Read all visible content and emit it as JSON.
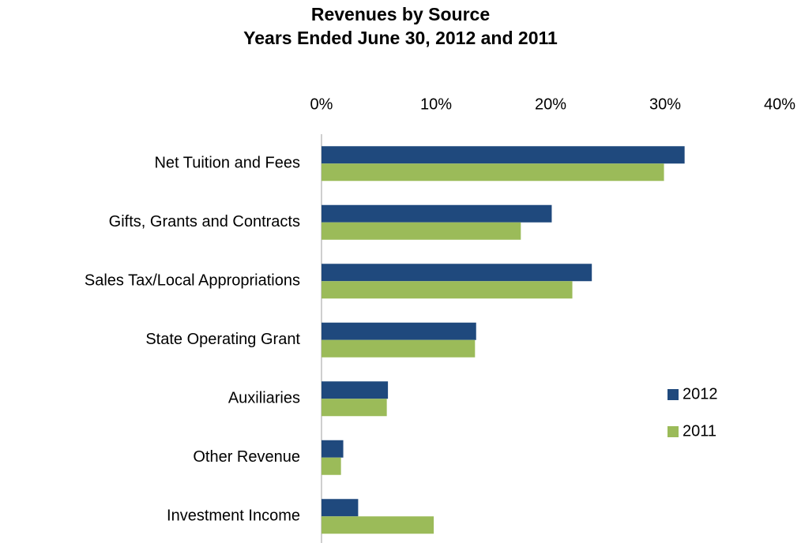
{
  "chart_data": {
    "type": "barh",
    "title": "Revenues by Source",
    "subtitle": "Years Ended June 30, 2012 and 2011",
    "categories": [
      "Net Tuition and Fees",
      "Gifts, Grants and Contracts",
      "Sales Tax/Local Appropriations",
      "State Operating Grant",
      "Auxiliaries",
      "Other Revenue",
      "Investment Income"
    ],
    "series": [
      {
        "name": "2012",
        "color": "#1f497d",
        "values": [
          31.7,
          20.1,
          23.6,
          13.5,
          5.8,
          1.9,
          3.2
        ]
      },
      {
        "name": "2011",
        "color": "#9bbb59",
        "values": [
          29.9,
          17.4,
          21.9,
          13.4,
          5.7,
          1.7,
          9.8
        ]
      }
    ],
    "xlim": [
      0,
      40
    ],
    "xticks": [
      {
        "value": 0,
        "label": "0%"
      },
      {
        "value": 10,
        "label": "10%"
      },
      {
        "value": 20,
        "label": "20%"
      },
      {
        "value": 30,
        "label": "30%"
      },
      {
        "value": 40,
        "label": "40%"
      }
    ],
    "grid": false,
    "legend": "right"
  }
}
